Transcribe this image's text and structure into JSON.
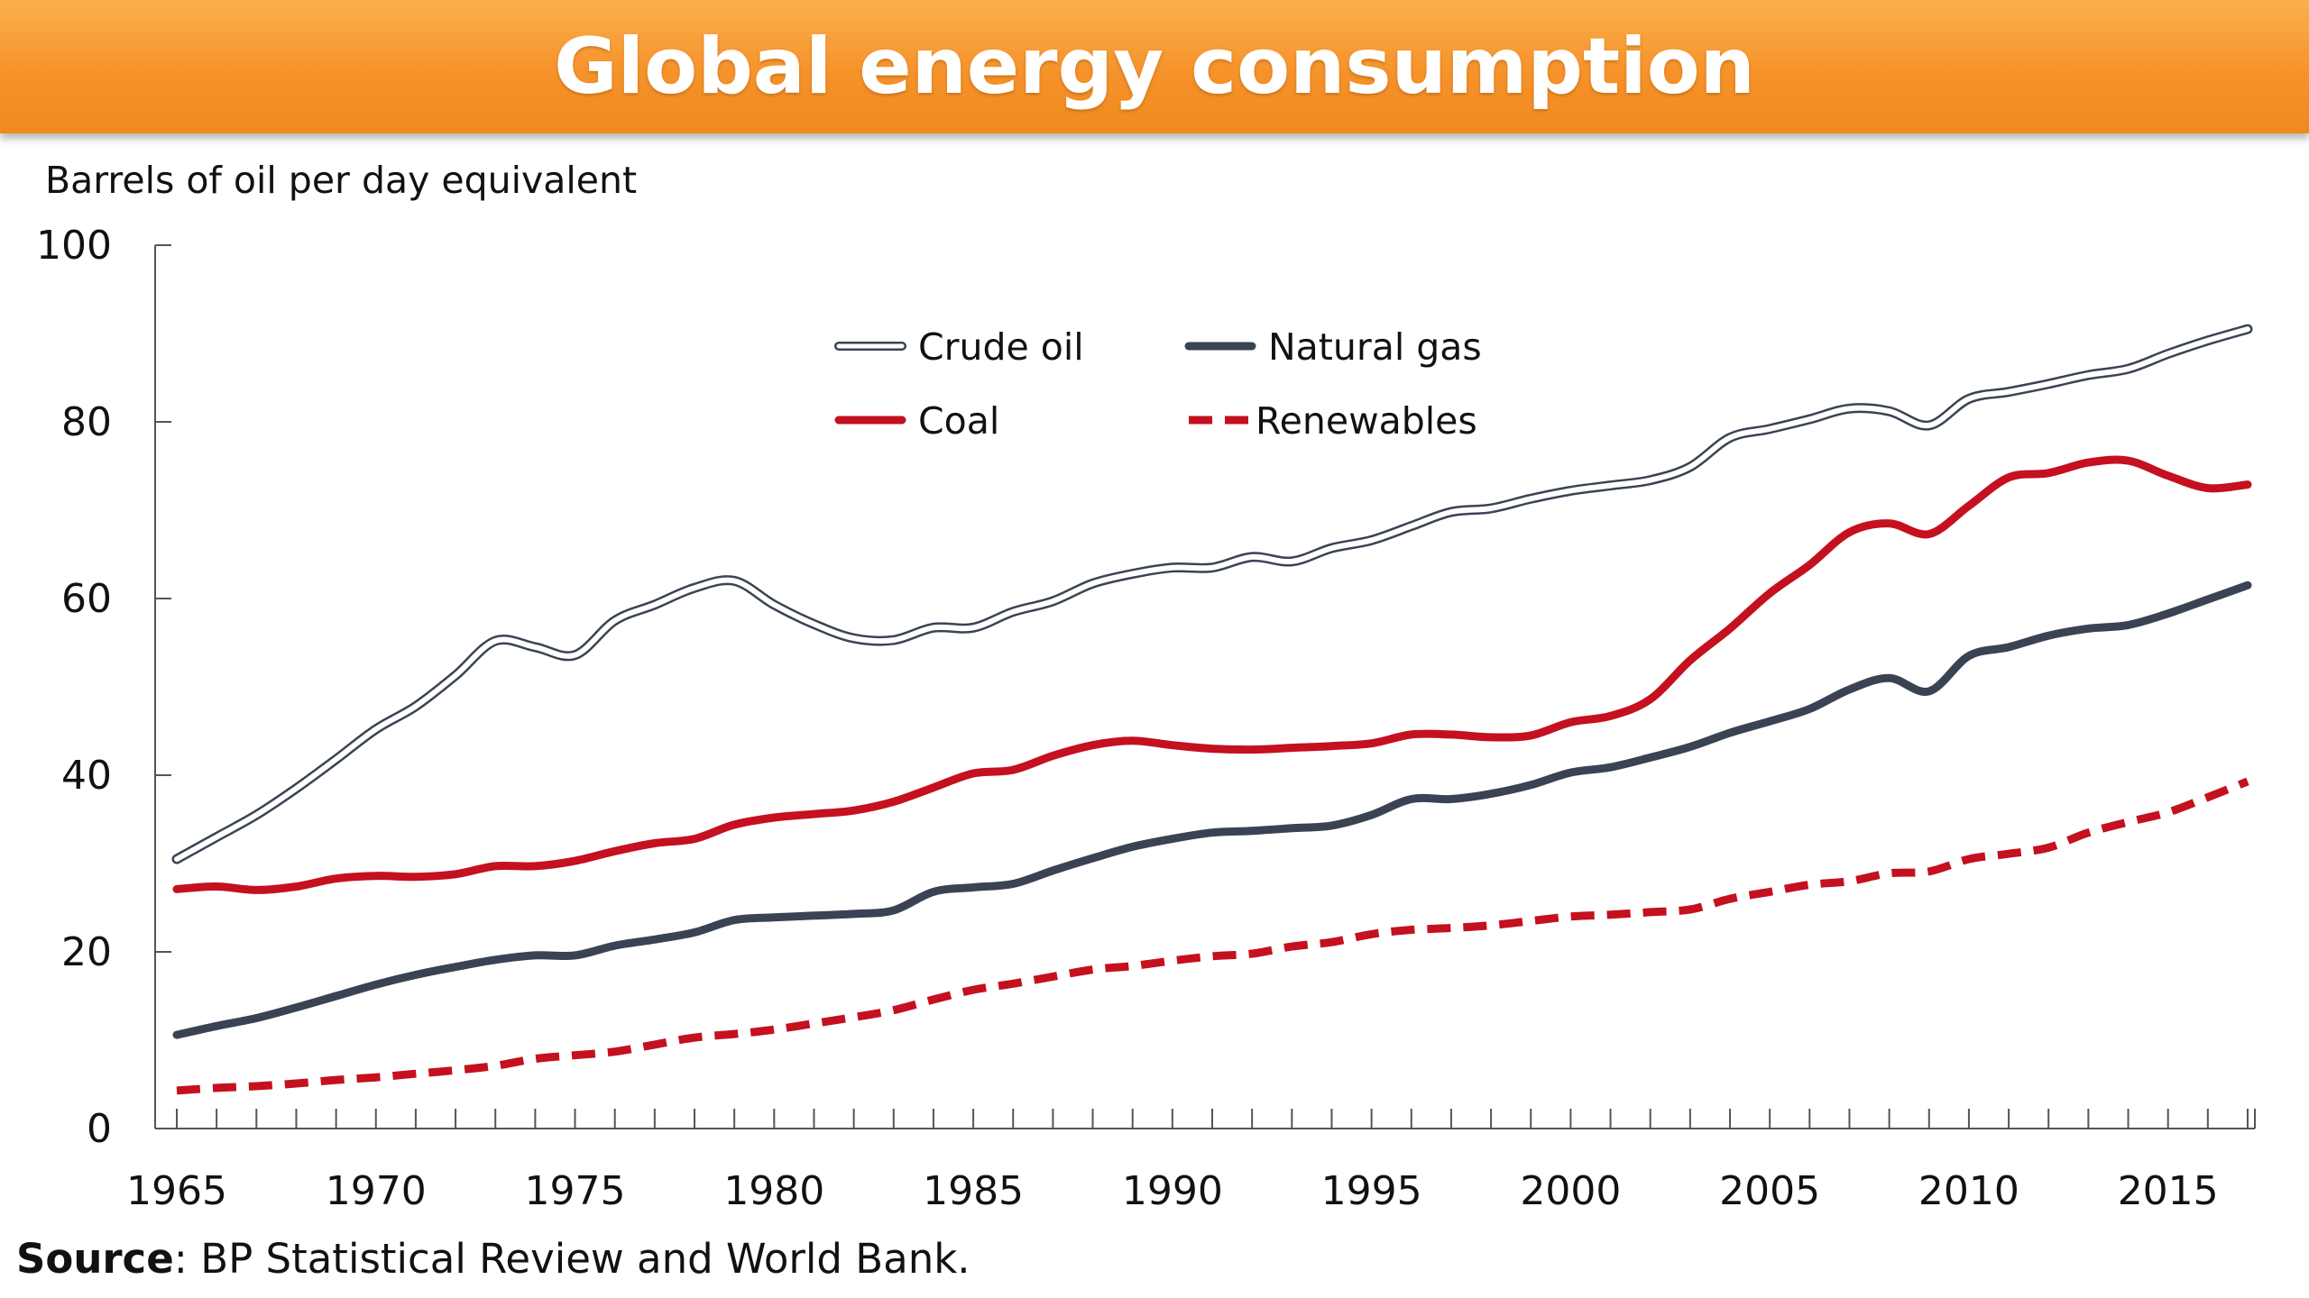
{
  "title": "Global energy consumption",
  "source": {
    "label": "Source",
    "text": ": BP Statistical Review and World Bank."
  },
  "chart_data": {
    "type": "line",
    "title": "Global energy consumption",
    "ylabel": "Barrels of oil per day equivalent",
    "xlabel": "",
    "ylim": [
      0,
      100
    ],
    "xlim": [
      1965,
      2017
    ],
    "y_ticks": [
      0,
      20,
      40,
      60,
      80,
      100
    ],
    "x_ticks": [
      1965,
      1970,
      1975,
      1980,
      1985,
      1990,
      1995,
      2000,
      2005,
      2010,
      2015
    ],
    "grid": false,
    "legend_position": "top-center",
    "x": [
      1965,
      1966,
      1967,
      1968,
      1969,
      1970,
      1971,
      1972,
      1973,
      1974,
      1975,
      1976,
      1977,
      1978,
      1979,
      1980,
      1981,
      1982,
      1983,
      1984,
      1985,
      1986,
      1987,
      1988,
      1989,
      1990,
      1991,
      1992,
      1993,
      1994,
      1995,
      1996,
      1997,
      1998,
      1999,
      2000,
      2001,
      2002,
      2003,
      2004,
      2005,
      2006,
      2007,
      2008,
      2009,
      2010,
      2011,
      2012,
      2013,
      2014,
      2015,
      2016,
      2017
    ],
    "series": [
      {
        "name": "Crude oil",
        "style": "outlined",
        "color": "#3a4354",
        "values": [
          30.5,
          33,
          35.5,
          38.5,
          41.8,
          45.2,
          47.8,
          51.3,
          55.2,
          54.5,
          53.6,
          57.5,
          59.3,
          61.2,
          62,
          59.3,
          57.1,
          55.5,
          55.3,
          56.7,
          56.7,
          58.5,
          59.7,
          61.7,
          62.8,
          63.5,
          63.5,
          64.7,
          64.2,
          65.7,
          66.6,
          68.2,
          69.8,
          70.2,
          71.3,
          72.2,
          72.8,
          73.4,
          74.9,
          78.2,
          79.2,
          80.3,
          81.5,
          81.2,
          79.6,
          82.6,
          83.4,
          84.3,
          85.3,
          86,
          87.7,
          89.2,
          90.5
        ]
      },
      {
        "name": "Natural gas",
        "style": "solid",
        "color": "#3a4354",
        "values": [
          10.6,
          11.6,
          12.5,
          13.7,
          15,
          16.3,
          17.4,
          18.3,
          19.1,
          19.6,
          19.6,
          20.7,
          21.4,
          22.2,
          23.6,
          23.9,
          24.1,
          24.3,
          24.7,
          26.8,
          27.3,
          27.7,
          29.2,
          30.6,
          31.9,
          32.8,
          33.5,
          33.7,
          34,
          34.3,
          35.5,
          37.3,
          37.3,
          37.9,
          38.9,
          40.3,
          40.9,
          42,
          43.2,
          44.8,
          46.1,
          47.5,
          49.7,
          51,
          49.5,
          53.5,
          54.5,
          55.8,
          56.6,
          57,
          58.3,
          59.9,
          61.5
        ]
      },
      {
        "name": "Coal",
        "style": "solid",
        "color": "#c5101f",
        "values": [
          27.1,
          27.4,
          27,
          27.4,
          28.3,
          28.6,
          28.5,
          28.8,
          29.7,
          29.7,
          30.3,
          31.4,
          32.3,
          32.8,
          34.4,
          35.2,
          35.6,
          36,
          37,
          38.6,
          40.2,
          40.6,
          42.2,
          43.4,
          43.9,
          43.4,
          43,
          42.9,
          43.1,
          43.3,
          43.6,
          44.6,
          44.6,
          44.3,
          44.5,
          46,
          46.7,
          48.6,
          53,
          56.6,
          60.6,
          63.8,
          67.5,
          68.5,
          67.3,
          70.5,
          73.7,
          74.2,
          75.4,
          75.6,
          73.9,
          72.5,
          72.9
        ]
      },
      {
        "name": "Renewables",
        "style": "dashed",
        "color": "#c5101f",
        "values": [
          4.3,
          4.6,
          4.8,
          5.1,
          5.5,
          5.8,
          6.2,
          6.6,
          7.1,
          7.9,
          8.3,
          8.7,
          9.5,
          10.3,
          10.7,
          11.2,
          11.9,
          12.6,
          13.4,
          14.6,
          15.7,
          16.4,
          17.2,
          18,
          18.4,
          19,
          19.5,
          19.8,
          20.6,
          21.1,
          22,
          22.5,
          22.7,
          23,
          23.5,
          24,
          24.2,
          24.5,
          24.8,
          26,
          26.8,
          27.6,
          28,
          28.9,
          29.1,
          30.5,
          31.1,
          31.8,
          33.5,
          34.7,
          35.8,
          37.5,
          39.3
        ]
      }
    ]
  }
}
